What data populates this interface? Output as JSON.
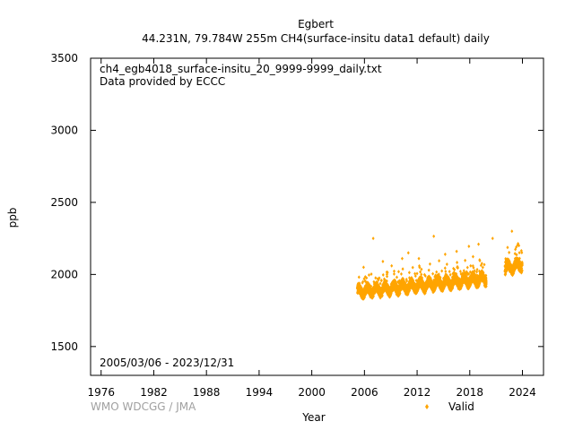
{
  "chart_data": {
    "type": "scatter",
    "title": "Egbert",
    "subtitle": "44.231N, 79.784W 255m    CH4(surface-insitu data1 default) daily",
    "xlabel": "Year",
    "ylabel": "ppb",
    "xlim": [
      1974.8,
      2026.4
    ],
    "ylim": [
      1300,
      3500
    ],
    "x_ticks": [
      1976,
      1982,
      1988,
      1994,
      2000,
      2006,
      2012,
      2018,
      2024
    ],
    "y_ticks": [
      1500,
      2000,
      2500,
      3000,
      3500
    ],
    "annotations": {
      "file": "ch4_egb4018_surface-insitu_20_9999-9999_daily.txt",
      "provider": "Data provided by ECCC",
      "period": "2005/03/06 - 2023/12/31"
    },
    "credit": "WMO WDCGG / JMA",
    "legend": {
      "position": "bottom-right",
      "entries": [
        {
          "label": "Valid",
          "color": "#ffa500"
        }
      ]
    },
    "series": [
      {
        "name": "Valid",
        "color": "#ffa500",
        "segments": [
          {
            "x_start": 2005.18,
            "x_end": 2019.9,
            "baseline_start": 1870,
            "baseline_end": 1960,
            "spread": 70
          },
          {
            "x_start": 2022.0,
            "x_end": 2023.99,
            "baseline_start": 2030,
            "baseline_end": 2060,
            "spread": 70
          }
        ],
        "peaks": [
          [
            2007.0,
            2250
          ],
          [
            2008.1,
            2090
          ],
          [
            2010.3,
            2110
          ],
          [
            2011.0,
            2150
          ],
          [
            2012.2,
            2110
          ],
          [
            2013.9,
            2265
          ],
          [
            2015.2,
            2140
          ],
          [
            2016.5,
            2160
          ],
          [
            2017.9,
            2195
          ],
          [
            2019.0,
            2210
          ],
          [
            2020.6,
            2250
          ],
          [
            2022.8,
            2300
          ],
          [
            2023.6,
            2200
          ],
          [
            2005.9,
            2050
          ],
          [
            2009.1,
            2060
          ]
        ]
      }
    ],
    "grid": false
  }
}
